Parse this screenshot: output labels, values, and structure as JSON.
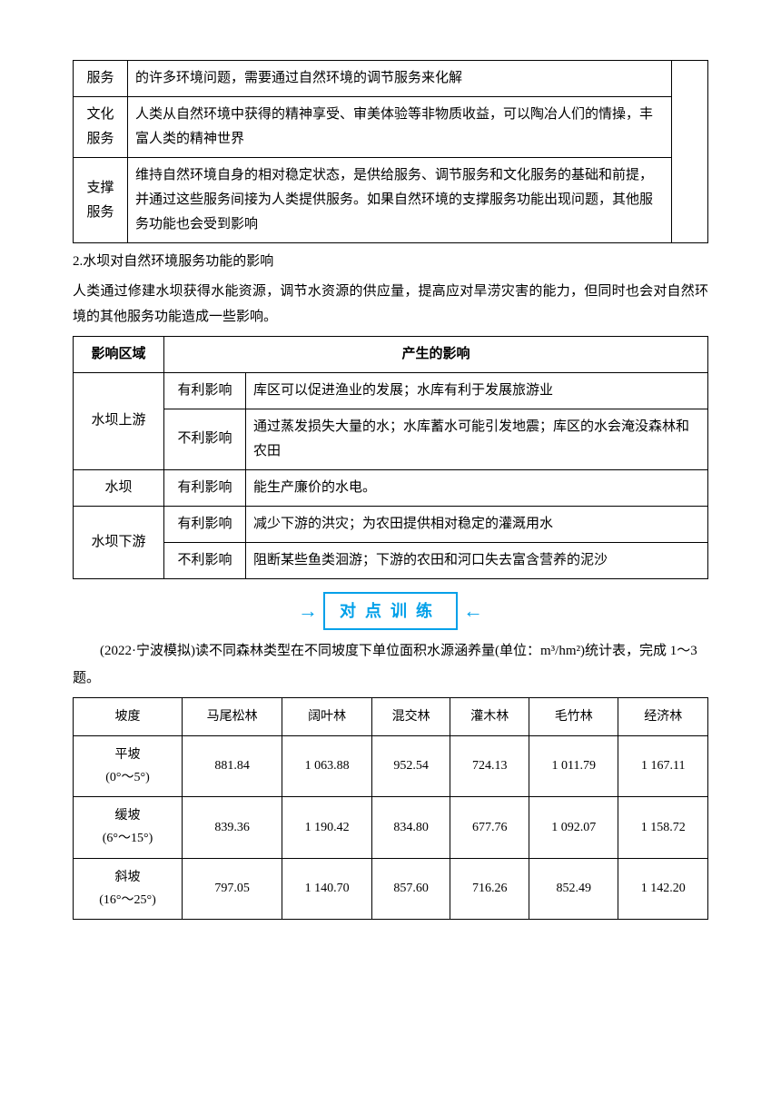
{
  "table1": {
    "rows": [
      {
        "label": "服务",
        "text": "的许多环境问题，需要通过自然环境的调节服务来化解"
      },
      {
        "label": "文化服务",
        "text": "人类从自然环境中获得的精神享受、审美体验等非物质收益，可以陶冶人们的情操，丰富人类的精神世界"
      },
      {
        "label": "支撑服务",
        "text": "维持自然环境自身的相对稳定状态，是供给服务、调节服务和文化服务的基础和前提，并通过这些服务间接为人类提供服务。如果自然环境的支撑服务功能出现问题，其他服务功能也会受到影响"
      }
    ]
  },
  "section2_heading": "2.水坝对自然环境服务功能的影响",
  "section2_para": "人类通过修建水坝获得水能资源，调节水资源的供应量，提高应对旱涝灾害的能力，但同时也会对自然环境的其他服务功能造成一些影响。",
  "table2": {
    "header": {
      "c1": "影响区域",
      "c2": "产生的影响"
    },
    "rows": {
      "upstream_label": "水坝上游",
      "upstream_fav_label": "有利影响",
      "upstream_fav_text": "库区可以促进渔业的发展；水库有利于发展旅游业",
      "upstream_adv_label": "不利影响",
      "upstream_adv_text": "通过蒸发损失大量的水；水库蓄水可能引发地震；库区的水会淹没森林和农田",
      "dam_label": "水坝",
      "dam_fav_label": "有利影响",
      "dam_fav_text": "能生产廉价的水电。",
      "down_label": "水坝下游",
      "down_fav_label": "有利影响",
      "down_fav_text": "减少下游的洪灾；为农田提供相对稳定的灌溉用水",
      "down_adv_label": "不利影响",
      "down_adv_text": "阻断某些鱼类洄游；下游的农田和河口失去富含营养的泥沙"
    }
  },
  "banner_text": "对点训练",
  "question_text": "(2022·宁波模拟)读不同森林类型在不同坡度下单位面积水源涵养量(单位：m³/hm²)统计表，完成 1～3 题。",
  "table3": {
    "columns": [
      "坡度",
      "马尾松林",
      "阔叶林",
      "混交林",
      "灌木林",
      "毛竹林",
      "经济林"
    ],
    "rows": [
      {
        "slope_name": "平坡",
        "slope_range": "(0°～5°)",
        "vals": [
          "881.84",
          "1 063.88",
          "952.54",
          "724.13",
          "1 011.79",
          "1 167.11"
        ]
      },
      {
        "slope_name": "缓坡",
        "slope_range": "(6°～15°)",
        "vals": [
          "839.36",
          "1 190.42",
          "834.80",
          "677.76",
          "1 092.07",
          "1 158.72"
        ]
      },
      {
        "slope_name": "斜坡",
        "slope_range": "(16°～25°)",
        "vals": [
          "797.05",
          "1 140.70",
          "857.60",
          "716.26",
          "852.49",
          "1 142.20"
        ]
      }
    ]
  },
  "colors": {
    "accent": "#00a0e9",
    "text": "#000000",
    "border": "#000000",
    "background": "#ffffff"
  }
}
